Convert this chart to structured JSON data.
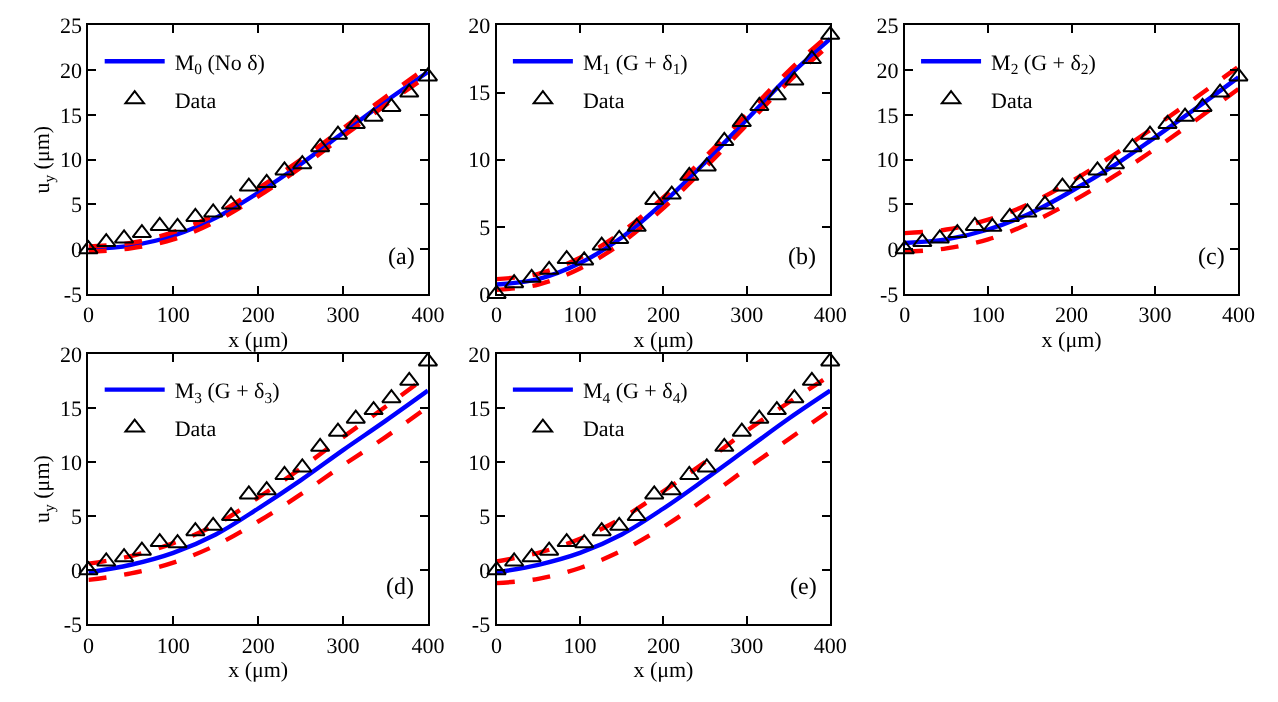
{
  "chart_data": [
    {
      "type": "line",
      "xlabel": "x (μm)",
      "ylabel": "u$_{y}$ (μm)",
      "xlim": [
        0,
        400
      ],
      "xticks": [
        0,
        100,
        200,
        300,
        400
      ],
      "ylim": [
        -5,
        25
      ],
      "yticks": [
        -5,
        0,
        5,
        10,
        15,
        20,
        25
      ],
      "legend": "top left",
      "annotations": [
        "(a)"
      ],
      "series": [
        {
          "name": "M$_{0}$ (No δ)",
          "color": "#0000ff",
          "line_style": "solid",
          "x": [
            0,
            50,
            100,
            150,
            200,
            250,
            300,
            350,
            400
          ],
          "values": [
            0,
            0.4,
            1.5,
            3.5,
            6.3,
            9.5,
            13.0,
            16.5,
            19.8
          ]
        },
        {
          "color": "#ff0000",
          "line_style": "dashed",
          "x": [
            0,
            50,
            100,
            150,
            200,
            250,
            300,
            350,
            400
          ],
          "values": [
            -0.3,
            0.1,
            1.1,
            3.1,
            5.9,
            9.1,
            12.6,
            16.1,
            19.4
          ]
        },
        {
          "color": "#ff0000",
          "line_style": "dashed",
          "x": [
            0,
            50,
            100,
            150,
            200,
            250,
            300,
            350,
            400
          ],
          "values": [
            0.3,
            0.7,
            1.9,
            3.9,
            6.8,
            10.0,
            13.5,
            17.0,
            20.4
          ]
        },
        {
          "name": "Data",
          "type": "scatter",
          "marker": "triangle",
          "color": "#000000",
          "x": [
            0,
            21,
            42,
            63,
            84,
            105,
            126,
            147,
            168,
            189,
            210,
            231,
            252,
            273,
            294,
            315,
            336,
            357,
            378,
            400
          ],
          "values": [
            0,
            0.8,
            1.2,
            1.8,
            2.6,
            2.5,
            3.6,
            4.1,
            5.0,
            7.0,
            7.4,
            8.8,
            9.5,
            11.4,
            12.8,
            14.0,
            14.8,
            15.9,
            17.5,
            19.3
          ]
        }
      ]
    },
    {
      "type": "line",
      "xlabel": "x (μm)",
      "xlim": [
        0,
        400
      ],
      "xticks": [
        0,
        100,
        200,
        300,
        400
      ],
      "ylim": [
        0,
        20
      ],
      "yticks": [
        0,
        5,
        10,
        15,
        20
      ],
      "legend": "top left",
      "annotations": [
        "(b)"
      ],
      "series": [
        {
          "name": "M$_{1}$ (G + δ$_{1}$)",
          "color": "#0000ff",
          "line_style": "solid",
          "x": [
            0,
            50,
            100,
            150,
            200,
            250,
            300,
            350,
            400
          ],
          "values": [
            0.7,
            1.1,
            2.3,
            4.2,
            6.8,
            9.8,
            13.0,
            16.2,
            19.0
          ]
        },
        {
          "color": "#ff0000",
          "line_style": "dashed",
          "x": [
            0,
            50,
            100,
            150,
            200,
            250,
            300,
            350,
            400
          ],
          "values": [
            0.3,
            0.7,
            1.9,
            3.8,
            6.4,
            9.4,
            12.6,
            15.8,
            18.6
          ]
        },
        {
          "color": "#ff0000",
          "line_style": "dashed",
          "x": [
            0,
            50,
            100,
            150,
            200,
            250,
            300,
            350,
            400
          ],
          "values": [
            1.1,
            1.5,
            2.7,
            4.6,
            7.2,
            10.2,
            13.4,
            16.6,
            19.4
          ]
        },
        {
          "name": "Data",
          "type": "scatter",
          "marker": "triangle",
          "color": "#000000",
          "x": [
            0,
            21,
            42,
            63,
            84,
            105,
            126,
            147,
            168,
            189,
            210,
            231,
            252,
            273,
            294,
            315,
            336,
            357,
            378,
            400
          ],
          "values": [
            0,
            0.8,
            1.2,
            1.8,
            2.6,
            2.5,
            3.6,
            4.1,
            5.0,
            7.0,
            7.4,
            8.8,
            9.5,
            11.4,
            12.8,
            14.0,
            14.8,
            15.9,
            17.5,
            19.3
          ]
        }
      ]
    },
    {
      "type": "line",
      "xlabel": "x (μm)",
      "xlim": [
        0,
        400
      ],
      "xticks": [
        0,
        100,
        200,
        300,
        400
      ],
      "ylim": [
        -5,
        25
      ],
      "yticks": [
        -5,
        0,
        5,
        10,
        15,
        20,
        25
      ],
      "legend": "top left",
      "annotations": [
        "(c)"
      ],
      "series": [
        {
          "name": "M$_{2}$ (G + δ$_{2}$)",
          "color": "#0000ff",
          "line_style": "solid",
          "x": [
            0,
            50,
            100,
            150,
            200,
            250,
            300,
            350,
            400
          ],
          "values": [
            0.7,
            1.1,
            2.2,
            4.0,
            6.5,
            9.3,
            12.5,
            15.8,
            19.2
          ]
        },
        {
          "color": "#ff0000",
          "line_style": "dashed",
          "x": [
            0,
            50,
            100,
            150,
            200,
            250,
            300,
            350,
            400
          ],
          "values": [
            -0.3,
            0.1,
            1.1,
            2.9,
            5.3,
            8.1,
            11.2,
            14.5,
            17.9
          ]
        },
        {
          "color": "#ff0000",
          "line_style": "dashed",
          "x": [
            0,
            50,
            100,
            150,
            200,
            250,
            300,
            350,
            400
          ],
          "values": [
            1.8,
            2.2,
            3.3,
            5.1,
            7.6,
            10.5,
            13.7,
            17.0,
            20.4
          ]
        },
        {
          "name": "Data",
          "type": "scatter",
          "marker": "triangle",
          "color": "#000000",
          "x": [
            0,
            21,
            42,
            63,
            84,
            105,
            126,
            147,
            168,
            189,
            210,
            231,
            252,
            273,
            294,
            315,
            336,
            357,
            378,
            400
          ],
          "values": [
            0,
            0.8,
            1.2,
            1.8,
            2.6,
            2.5,
            3.6,
            4.1,
            5.0,
            7.0,
            7.4,
            8.8,
            9.5,
            11.4,
            12.8,
            14.0,
            14.8,
            15.9,
            17.5,
            19.3
          ]
        }
      ]
    },
    {
      "type": "line",
      "xlabel": "x (μm)",
      "ylabel": "u$_{y}$ (μm)",
      "xlim": [
        0,
        400
      ],
      "xticks": [
        0,
        100,
        200,
        300,
        400
      ],
      "ylim": [
        -5,
        20
      ],
      "yticks": [
        -5,
        0,
        5,
        10,
        15,
        20
      ],
      "legend": "top left",
      "annotations": [
        "(d)"
      ],
      "series": [
        {
          "name": "M$_{3}$ (G + δ$_{3}$)",
          "color": "#0000ff",
          "line_style": "solid",
          "x": [
            0,
            50,
            100,
            150,
            200,
            250,
            300,
            350,
            400
          ],
          "values": [
            -0.2,
            0.5,
            1.6,
            3.3,
            5.7,
            8.3,
            11.1,
            13.8,
            16.6
          ]
        },
        {
          "color": "#ff0000",
          "line_style": "dashed",
          "x": [
            0,
            50,
            100,
            150,
            200,
            250,
            300,
            350,
            400
          ],
          "values": [
            -0.9,
            -0.3,
            0.7,
            2.3,
            4.5,
            7.0,
            9.7,
            12.3,
            15.1
          ]
        },
        {
          "color": "#ff0000",
          "line_style": "dashed",
          "x": [
            0,
            50,
            100,
            150,
            200,
            250,
            300,
            350,
            400
          ],
          "values": [
            0.6,
            1.3,
            2.5,
            4.2,
            6.7,
            9.4,
            12.3,
            15.1,
            18.0
          ]
        },
        {
          "name": "Data",
          "type": "scatter",
          "marker": "triangle",
          "color": "#000000",
          "x": [
            0,
            21,
            42,
            63,
            84,
            105,
            126,
            147,
            168,
            189,
            210,
            231,
            252,
            273,
            294,
            315,
            336,
            357,
            378,
            400
          ],
          "values": [
            0,
            0.8,
            1.2,
            1.8,
            2.6,
            2.5,
            3.6,
            4.1,
            5.0,
            7.0,
            7.4,
            8.8,
            9.5,
            11.4,
            12.8,
            14.0,
            14.8,
            15.9,
            17.5,
            19.3
          ]
        }
      ]
    },
    {
      "type": "line",
      "xlabel": "x (μm)",
      "xlim": [
        0,
        400
      ],
      "xticks": [
        0,
        100,
        200,
        300,
        400
      ],
      "ylim": [
        -5,
        20
      ],
      "yticks": [
        -5,
        0,
        5,
        10,
        15,
        20
      ],
      "legend": "top left",
      "annotations": [
        "(e)"
      ],
      "series": [
        {
          "name": "M$_{4}$ (G + δ$_{4}$)",
          "color": "#0000ff",
          "line_style": "solid",
          "x": [
            0,
            50,
            100,
            150,
            200,
            250,
            300,
            350,
            400
          ],
          "values": [
            -0.2,
            0.5,
            1.6,
            3.3,
            5.7,
            8.4,
            11.2,
            14.0,
            16.6
          ]
        },
        {
          "color": "#ff0000",
          "line_style": "dashed",
          "x": [
            0,
            50,
            100,
            150,
            200,
            250,
            300,
            350,
            400
          ],
          "values": [
            -1.2,
            -0.8,
            0.2,
            1.8,
            4.0,
            6.6,
            9.4,
            12.1,
            14.8
          ]
        },
        {
          "color": "#ff0000",
          "line_style": "dashed",
          "x": [
            0,
            50,
            100,
            150,
            200,
            250,
            300,
            350,
            400
          ],
          "values": [
            0.8,
            1.6,
            2.9,
            4.8,
            7.3,
            10.0,
            12.9,
            15.5,
            18.0
          ]
        },
        {
          "name": "Data",
          "type": "scatter",
          "marker": "triangle",
          "color": "#000000",
          "x": [
            0,
            21,
            42,
            63,
            84,
            105,
            126,
            147,
            168,
            189,
            210,
            231,
            252,
            273,
            294,
            315,
            336,
            357,
            378,
            400
          ],
          "values": [
            0,
            0.8,
            1.2,
            1.8,
            2.6,
            2.5,
            3.6,
            4.1,
            5.0,
            7.0,
            7.4,
            8.8,
            9.5,
            11.4,
            12.8,
            14.0,
            14.8,
            15.9,
            17.5,
            19.3
          ]
        }
      ]
    }
  ]
}
